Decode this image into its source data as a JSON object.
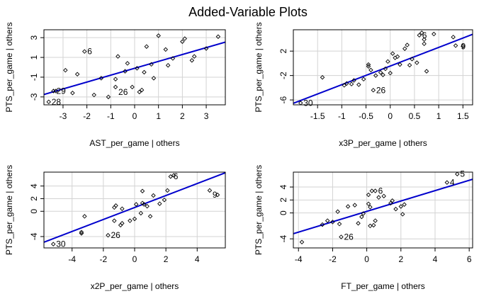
{
  "figure": {
    "title": "Added-Variable Plots"
  },
  "chart_data": [
    {
      "type": "scatter",
      "xlabel": "AST_per_game | others",
      "ylabel": "PTS_per_game  | others",
      "xlim": [
        -3.8,
        3.8
      ],
      "ylim": [
        -3.8,
        3.8
      ],
      "xticks": [
        -3,
        -2,
        -1,
        0,
        1,
        2,
        3
      ],
      "yticks": [
        -3,
        -1,
        1,
        3
      ],
      "grid": true,
      "points": [
        [
          -3.6,
          -3.5
        ],
        [
          -3.4,
          -2.4
        ],
        [
          -3.3,
          -2.4
        ],
        [
          -2.9,
          -0.3
        ],
        [
          -2.6,
          -2.6
        ],
        [
          -2.4,
          -0.7
        ],
        [
          -2.1,
          1.6
        ],
        [
          -1.7,
          -2.8
        ],
        [
          -1.4,
          -1.1
        ],
        [
          -1.1,
          -3.0
        ],
        [
          -0.8,
          -2.0
        ],
        [
          -0.8,
          -1.2
        ],
        [
          -0.7,
          1.1
        ],
        [
          -0.4,
          -0.4
        ],
        [
          -0.3,
          0.4
        ],
        [
          -0.1,
          -2.0
        ],
        [
          0.1,
          -0.1
        ],
        [
          0.2,
          -2.5
        ],
        [
          0.3,
          -2.3
        ],
        [
          0.4,
          -0.5
        ],
        [
          0.5,
          2.1
        ],
        [
          0.7,
          0.3
        ],
        [
          0.8,
          -1.1
        ],
        [
          1.0,
          3.2
        ],
        [
          1.3,
          1.8
        ],
        [
          1.4,
          0.2
        ],
        [
          1.6,
          0.9
        ],
        [
          2.0,
          2.6
        ],
        [
          2.1,
          2.9
        ],
        [
          2.4,
          0.7
        ],
        [
          2.5,
          1.1
        ],
        [
          3.0,
          1.9
        ],
        [
          3.5,
          3.1
        ]
      ],
      "fit": {
        "x": [
          -3.8,
          3.8
        ],
        "y": [
          -2.75,
          2.55
        ]
      },
      "labels": [
        {
          "text": "28",
          "x": -3.6,
          "y": -3.5
        },
        {
          "text": "29",
          "x": -3.4,
          "y": -2.4
        },
        {
          "text": "6",
          "x": -2.1,
          "y": 1.6
        },
        {
          "text": "26",
          "x": -0.8,
          "y": -2.5
        }
      ]
    },
    {
      "type": "scatter",
      "xlabel": "x3P_per_game | others",
      "ylabel": "PTS_per_game  | others",
      "xlim": [
        -2.0,
        1.7
      ],
      "ylim": [
        -6.8,
        5.5
      ],
      "xticks": [
        -1.5,
        -1.0,
        -0.5,
        0.0,
        0.5,
        1.0,
        1.5
      ],
      "yticks": [
        -6,
        -2,
        2
      ],
      "grid": true,
      "points": [
        [
          -1.85,
          -6.5
        ],
        [
          -1.4,
          -2.3
        ],
        [
          -0.95,
          -3.6
        ],
        [
          -0.9,
          -3.3
        ],
        [
          -0.8,
          -3.4
        ],
        [
          -0.75,
          -2.8
        ],
        [
          -0.65,
          -3.5
        ],
        [
          -0.55,
          -2.6
        ],
        [
          -0.45,
          -0.5
        ],
        [
          -0.45,
          -0.2
        ],
        [
          -0.4,
          -1.1
        ],
        [
          -0.35,
          -4.4
        ],
        [
          -0.3,
          -2.0
        ],
        [
          -0.2,
          -1.5
        ],
        [
          -0.15,
          -1.9
        ],
        [
          -0.1,
          -0.9
        ],
        [
          -0.05,
          0.3
        ],
        [
          0.0,
          -1.6
        ],
        [
          0.05,
          1.6
        ],
        [
          0.1,
          0.9
        ],
        [
          0.15,
          1.1
        ],
        [
          0.2,
          -0.2
        ],
        [
          0.3,
          2.4
        ],
        [
          0.35,
          3.0
        ],
        [
          0.4,
          -0.3
        ],
        [
          0.45,
          0.7
        ],
        [
          0.55,
          0.1
        ],
        [
          0.6,
          4.6
        ],
        [
          0.65,
          5.0
        ],
        [
          0.7,
          3.2
        ],
        [
          0.7,
          3.9
        ],
        [
          0.75,
          -1.3
        ],
        [
          0.9,
          4.8
        ],
        [
          1.3,
          4.3
        ],
        [
          1.35,
          2.9
        ],
        [
          1.5,
          2.8
        ]
      ],
      "fit": {
        "x": [
          -2.0,
          1.7
        ],
        "y": [
          -6.55,
          4.75
        ]
      },
      "labels": [
        {
          "text": "30",
          "x": -1.85,
          "y": -6.5
        },
        {
          "text": "26",
          "x": -0.35,
          "y": -4.4
        },
        {
          "text": "6",
          "x": 0.6,
          "y": 4.6
        },
        {
          "text": "9",
          "x": 1.4,
          "y": 2.8
        }
      ]
    },
    {
      "type": "scatter",
      "xlabel": "x2P_per_game | others",
      "ylabel": "PTS_per_game  | others",
      "xlim": [
        -5.8,
        5.8
      ],
      "ylim": [
        -5.8,
        6.2
      ],
      "xticks": [
        -4,
        -2,
        0,
        2,
        4
      ],
      "yticks": [
        -4,
        0,
        2,
        4
      ],
      "grid": true,
      "points": [
        [
          -5.2,
          -5.2
        ],
        [
          -3.4,
          -3.5
        ],
        [
          -3.4,
          -3.3
        ],
        [
          -3.2,
          -0.8
        ],
        [
          -1.7,
          -3.8
        ],
        [
          -1.3,
          -1.5
        ],
        [
          -1.3,
          0.6
        ],
        [
          -1.2,
          0.9
        ],
        [
          -0.9,
          -2.2
        ],
        [
          -0.8,
          -1.9
        ],
        [
          -0.8,
          0.4
        ],
        [
          -0.3,
          -1.5
        ],
        [
          0.0,
          -1.2
        ],
        [
          0.1,
          1.1
        ],
        [
          0.4,
          -0.3
        ],
        [
          0.5,
          1.3
        ],
        [
          0.5,
          3.2
        ],
        [
          0.6,
          1.1
        ],
        [
          0.8,
          0.8
        ],
        [
          1.0,
          -0.8
        ],
        [
          1.2,
          2.5
        ],
        [
          1.6,
          1.2
        ],
        [
          1.9,
          1.8
        ],
        [
          2.1,
          3.3
        ],
        [
          2.3,
          5.5
        ],
        [
          2.5,
          5.7
        ],
        [
          4.8,
          3.3
        ],
        [
          5.3,
          2.6
        ]
      ],
      "fit": {
        "x": [
          -5.8,
          5.8
        ],
        "y": [
          -4.9,
          6.1
        ]
      },
      "labels": [
        {
          "text": "30",
          "x": -5.2,
          "y": -5.2
        },
        {
          "text": "26",
          "x": -1.7,
          "y": -3.8
        },
        {
          "text": "6",
          "x": 2.3,
          "y": 5.5
        },
        {
          "text": "9",
          "x": 4.8,
          "y": 2.6
        }
      ]
    },
    {
      "type": "scatter",
      "xlabel": "FT_per_game | others",
      "ylabel": "PTS_per_game  | others",
      "xlim": [
        -4.3,
        6.2
      ],
      "ylim": [
        -5.4,
        6.3
      ],
      "xticks": [
        -4,
        -2,
        0,
        2,
        4,
        6
      ],
      "yticks": [
        -4,
        0,
        2,
        4
      ],
      "grid": true,
      "points": [
        [
          -3.8,
          -4.5
        ],
        [
          -2.6,
          -1.8
        ],
        [
          -2.3,
          -1.2
        ],
        [
          -2.0,
          -1.4
        ],
        [
          -1.7,
          0.2
        ],
        [
          -1.6,
          -1.7
        ],
        [
          -1.5,
          -3.7
        ],
        [
          -1.1,
          1.0
        ],
        [
          -0.7,
          1.2
        ],
        [
          -0.5,
          -1.6
        ],
        [
          -0.3,
          -0.6
        ],
        [
          -0.2,
          -0.1
        ],
        [
          0.1,
          1.4
        ],
        [
          0.1,
          2.8
        ],
        [
          0.2,
          -2.0
        ],
        [
          0.2,
          0.9
        ],
        [
          0.3,
          3.4
        ],
        [
          0.4,
          -1.9
        ],
        [
          0.5,
          -1.2
        ],
        [
          0.5,
          3.4
        ],
        [
          0.7,
          2.4
        ],
        [
          1.0,
          2.6
        ],
        [
          1.4,
          1.5
        ],
        [
          1.5,
          1.9
        ],
        [
          1.7,
          0.6
        ],
        [
          2.0,
          1.0
        ],
        [
          2.1,
          -0.2
        ],
        [
          2.2,
          1.3
        ],
        [
          4.7,
          4.7
        ],
        [
          5.3,
          6.0
        ]
      ],
      "fit": {
        "x": [
          -4.3,
          6.2
        ],
        "y": [
          -3.2,
          5.2
        ]
      },
      "labels": [
        {
          "text": "26",
          "x": -1.5,
          "y": -3.7
        },
        {
          "text": "6",
          "x": 0.5,
          "y": 3.4
        },
        {
          "text": "4",
          "x": 4.7,
          "y": 4.7
        },
        {
          "text": "5",
          "x": 5.3,
          "y": 6.0
        }
      ]
    }
  ],
  "colors": {
    "fit_line": "#0000cc",
    "grid": "#d3d3d3",
    "points": "#000000"
  }
}
